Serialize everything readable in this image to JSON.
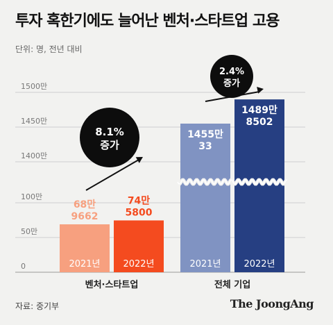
{
  "header": {
    "title": "투자 혹한기에도 늘어난 벤처·스타트업 고용",
    "unit": "단위: 명, 전년 대비"
  },
  "footer": {
    "source": "자료: 중기부",
    "brand": "The JoongAng"
  },
  "chart_data": {
    "type": "bar",
    "title": "투자 혹한기에도 늘어난 벤처·스타트업 고용",
    "ylabel": "",
    "ytick_labels": [
      "0",
      "50만",
      "100만",
      "1400만",
      "1450만",
      "1500만"
    ],
    "axis_break": true,
    "groups": [
      {
        "name": "벤처·스타트업",
        "bars": [
          {
            "year": "2021년",
            "value": 689662,
            "label_line1": "68만",
            "label_line2": "9662",
            "color": "#f7a07f",
            "label_color": "#f7a07f"
          },
          {
            "year": "2022년",
            "value": 745800,
            "label_line1": "74만",
            "label_line2": "5800",
            "color": "#f44b1f",
            "label_color": "#f44b1f"
          }
        ],
        "change": {
          "line1": "8.1%",
          "line2": "증가"
        }
      },
      {
        "name": "전체 기업",
        "bars": [
          {
            "year": "2021년",
            "value": 14550033,
            "label_line1": "1455만",
            "label_line2": "33",
            "color": "#8093c2",
            "label_color": "#ffffff"
          },
          {
            "year": "2022년",
            "value": 14898502,
            "label_line1": "1489만",
            "label_line2": "8502",
            "color": "#263f82",
            "label_color": "#ffffff"
          }
        ],
        "change": {
          "line1": "2.4%",
          "line2": "증가"
        }
      }
    ],
    "grid": true
  }
}
